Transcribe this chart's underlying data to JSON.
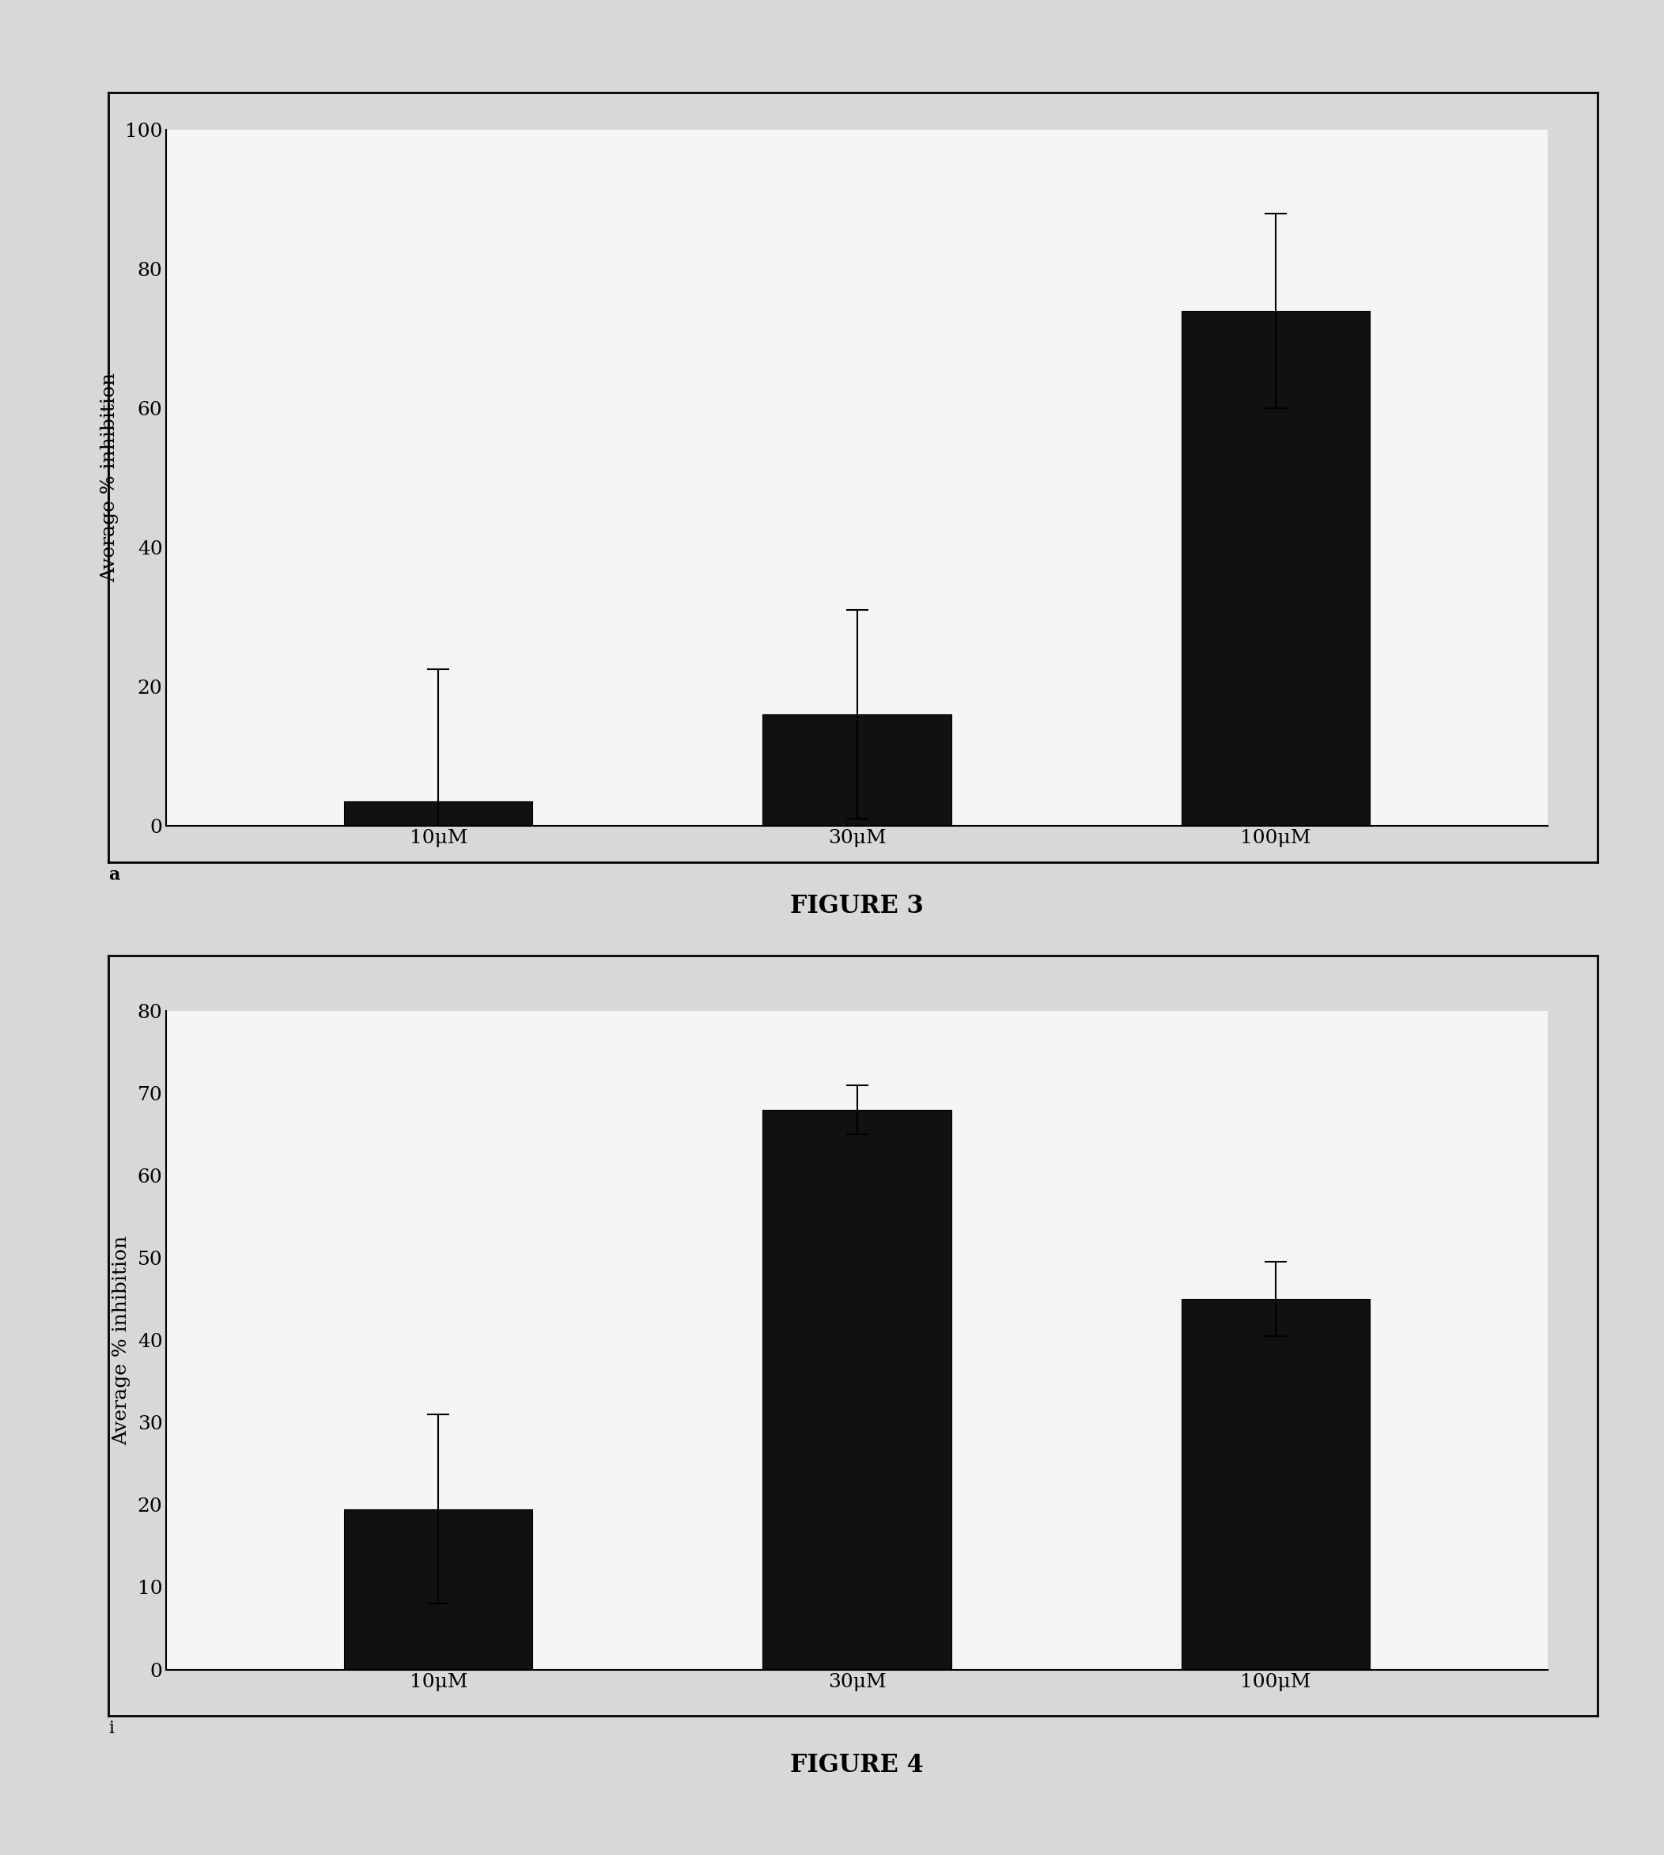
{
  "fig3": {
    "categories": [
      "10μM",
      "30μM",
      "100μM"
    ],
    "values": [
      3.5,
      16.0,
      74.0
    ],
    "errors": [
      19.0,
      15.0,
      14.0
    ],
    "ylabel": "Average % inhibition",
    "ylim": [
      0,
      100
    ],
    "yticks": [
      0,
      20,
      40,
      60,
      80,
      100
    ],
    "title": "FIGURE 3",
    "bar_color": "#111111",
    "bar_width": 0.45
  },
  "fig4": {
    "categories": [
      "10μM",
      "30μM",
      "100μM"
    ],
    "values": [
      19.5,
      68.0,
      45.0
    ],
    "errors": [
      11.5,
      3.0,
      4.5
    ],
    "ylabel": "Average % inhibition",
    "ylim": [
      0,
      80
    ],
    "yticks": [
      0,
      10,
      20,
      30,
      40,
      50,
      60,
      70,
      80
    ],
    "title": "FIGURE 4",
    "bar_color": "#111111",
    "bar_width": 0.45
  },
  "page_background": "#d8d8d8",
  "box_background": "#f5f5f5",
  "figure_label_a": "a",
  "figure_label_i": "i",
  "tick_fontsize": 18,
  "label_fontsize": 18,
  "title_fontsize": 22
}
